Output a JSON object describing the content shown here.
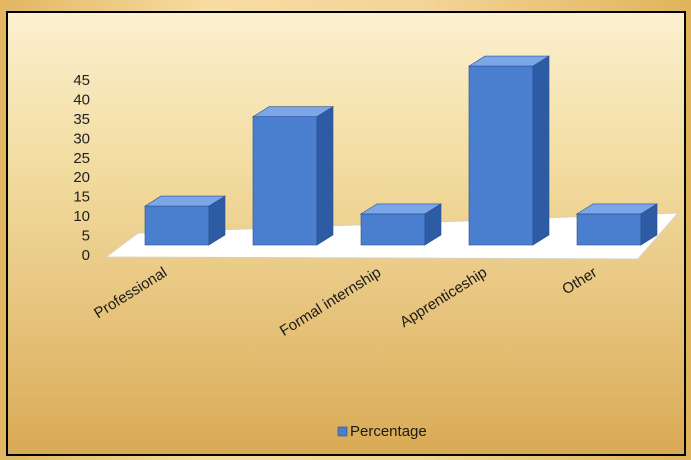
{
  "chart_data": {
    "type": "bar",
    "style": "3d-column",
    "categories": [
      "Professional",
      "",
      "Formal internship",
      "Apprenticeship",
      "Other"
    ],
    "series": [
      {
        "name": "Percentage",
        "values": [
          10,
          33,
          8,
          46,
          8
        ]
      }
    ],
    "ylim": [
      0,
      45
    ],
    "yticks": [
      "0",
      "5",
      "10",
      "15",
      "20",
      "25",
      "30",
      "35",
      "40",
      "45"
    ],
    "legend_position": "bottom",
    "grid": false,
    "bar_color": "#4a7fd0",
    "bar_top_color": "#7ba7e8",
    "bar_side_color": "#2d5ca4",
    "floor_color": "#ffffff"
  }
}
